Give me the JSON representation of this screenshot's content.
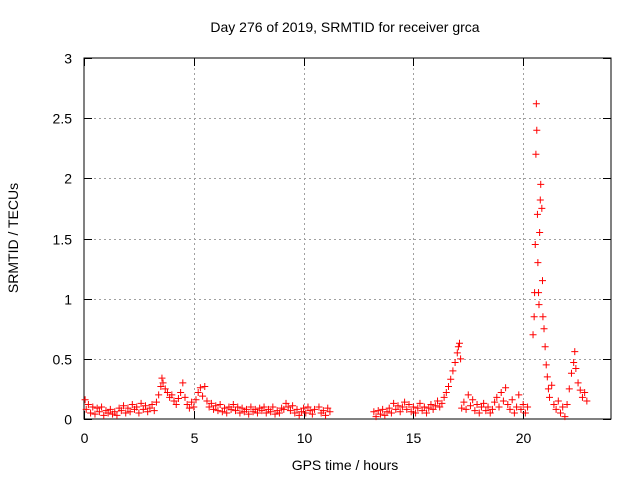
{
  "chart_data": {
    "type": "scatter",
    "title": "Day 276 of 2019, SRMTID for receiver grca",
    "xlabel": "GPS time / hours",
    "ylabel": "SRMTID / TECUs",
    "xlim": [
      0,
      24
    ],
    "ylim": [
      0,
      3
    ],
    "xticks": [
      0,
      5,
      10,
      15,
      20
    ],
    "xtick_labels": [
      "0",
      "5",
      "10",
      "15",
      "20"
    ],
    "yticks": [
      0,
      0.5,
      1,
      1.5,
      2,
      2.5,
      3
    ],
    "ytick_labels": [
      "0",
      "0.5",
      "1",
      "1.5",
      "2",
      "2.5",
      "3"
    ],
    "grid": true,
    "marker": "+",
    "series": [
      {
        "name": "SRMTID",
        "color": "#ff0000",
        "points": [
          [
            0.05,
            0.16
          ],
          [
            0.1,
            0.08
          ],
          [
            0.2,
            0.12
          ],
          [
            0.3,
            0.05
          ],
          [
            0.4,
            0.1
          ],
          [
            0.5,
            0.04
          ],
          [
            0.6,
            0.09
          ],
          [
            0.7,
            0.06
          ],
          [
            0.8,
            0.1
          ],
          [
            0.9,
            0.03
          ],
          [
            1.0,
            0.07
          ],
          [
            1.1,
            0.05
          ],
          [
            1.2,
            0.08
          ],
          [
            1.3,
            0.04
          ],
          [
            1.4,
            0.06
          ],
          [
            1.5,
            0.03
          ],
          [
            1.6,
            0.09
          ],
          [
            1.7,
            0.07
          ],
          [
            1.8,
            0.11
          ],
          [
            1.9,
            0.05
          ],
          [
            2.0,
            0.09
          ],
          [
            2.1,
            0.06
          ],
          [
            2.2,
            0.12
          ],
          [
            2.3,
            0.08
          ],
          [
            2.4,
            0.1
          ],
          [
            2.5,
            0.05
          ],
          [
            2.6,
            0.13
          ],
          [
            2.7,
            0.08
          ],
          [
            2.8,
            0.11
          ],
          [
            2.9,
            0.06
          ],
          [
            3.0,
            0.09
          ],
          [
            3.1,
            0.12
          ],
          [
            3.2,
            0.07
          ],
          [
            3.3,
            0.14
          ],
          [
            3.4,
            0.2
          ],
          [
            3.5,
            0.27
          ],
          [
            3.55,
            0.34
          ],
          [
            3.6,
            0.3
          ],
          [
            3.7,
            0.25
          ],
          [
            3.8,
            0.22
          ],
          [
            3.9,
            0.18
          ],
          [
            4.0,
            0.2
          ],
          [
            4.1,
            0.15
          ],
          [
            4.2,
            0.12
          ],
          [
            4.3,
            0.17
          ],
          [
            4.4,
            0.22
          ],
          [
            4.5,
            0.3
          ],
          [
            4.6,
            0.18
          ],
          [
            4.7,
            0.12
          ],
          [
            4.8,
            0.09
          ],
          [
            4.9,
            0.14
          ],
          [
            5.0,
            0.1
          ],
          [
            5.1,
            0.16
          ],
          [
            5.2,
            0.22
          ],
          [
            5.3,
            0.26
          ],
          [
            5.4,
            0.19
          ],
          [
            5.5,
            0.27
          ],
          [
            5.6,
            0.15
          ],
          [
            5.7,
            0.1
          ],
          [
            5.8,
            0.13
          ],
          [
            5.9,
            0.08
          ],
          [
            6.0,
            0.11
          ],
          [
            6.1,
            0.07
          ],
          [
            6.2,
            0.12
          ],
          [
            6.3,
            0.06
          ],
          [
            6.4,
            0.09
          ],
          [
            6.5,
            0.05
          ],
          [
            6.6,
            0.1
          ],
          [
            6.7,
            0.08
          ],
          [
            6.8,
            0.12
          ],
          [
            6.9,
            0.07
          ],
          [
            7.0,
            0.1
          ],
          [
            7.1,
            0.05
          ],
          [
            7.2,
            0.09
          ],
          [
            7.3,
            0.06
          ],
          [
            7.4,
            0.08
          ],
          [
            7.5,
            0.04
          ],
          [
            7.6,
            0.1
          ],
          [
            7.7,
            0.06
          ],
          [
            7.8,
            0.08
          ],
          [
            7.9,
            0.05
          ],
          [
            8.0,
            0.09
          ],
          [
            8.1,
            0.07
          ],
          [
            8.2,
            0.1
          ],
          [
            8.3,
            0.05
          ],
          [
            8.4,
            0.08
          ],
          [
            8.5,
            0.06
          ],
          [
            8.6,
            0.1
          ],
          [
            8.7,
            0.04
          ],
          [
            8.8,
            0.07
          ],
          [
            8.9,
            0.05
          ],
          [
            9.0,
            0.09
          ],
          [
            9.1,
            0.08
          ],
          [
            9.2,
            0.13
          ],
          [
            9.3,
            0.1
          ],
          [
            9.4,
            0.07
          ],
          [
            9.5,
            0.11
          ],
          [
            9.6,
            0.05
          ],
          [
            9.7,
            0.08
          ],
          [
            9.8,
            0.03
          ],
          [
            9.9,
            0.06
          ],
          [
            10.0,
            0.09
          ],
          [
            10.1,
            0.05
          ],
          [
            10.2,
            0.1
          ],
          [
            10.3,
            0.07
          ],
          [
            10.4,
            0.04
          ],
          [
            10.5,
            0.08
          ],
          [
            10.7,
            0.1
          ],
          [
            10.8,
            0.05
          ],
          [
            10.9,
            0.07
          ],
          [
            11.0,
            0.03
          ],
          [
            11.1,
            0.09
          ],
          [
            11.2,
            0.06
          ],
          [
            13.2,
            0.06
          ],
          [
            13.3,
            0.02
          ],
          [
            13.4,
            0.07
          ],
          [
            13.5,
            0.04
          ],
          [
            13.6,
            0.08
          ],
          [
            13.7,
            0.03
          ],
          [
            13.8,
            0.06
          ],
          [
            13.9,
            0.09
          ],
          [
            14.0,
            0.05
          ],
          [
            14.1,
            0.13
          ],
          [
            14.2,
            0.08
          ],
          [
            14.3,
            0.11
          ],
          [
            14.4,
            0.06
          ],
          [
            14.5,
            0.1
          ],
          [
            14.6,
            0.14
          ],
          [
            14.7,
            0.08
          ],
          [
            14.8,
            0.12
          ],
          [
            14.9,
            0.06
          ],
          [
            15.0,
            0.1
          ],
          [
            15.1,
            0.05
          ],
          [
            15.2,
            0.09
          ],
          [
            15.3,
            0.13
          ],
          [
            15.4,
            0.07
          ],
          [
            15.5,
            0.1
          ],
          [
            15.6,
            0.05
          ],
          [
            15.7,
            0.09
          ],
          [
            15.8,
            0.12
          ],
          [
            15.9,
            0.08
          ],
          [
            16.0,
            0.11
          ],
          [
            16.1,
            0.15
          ],
          [
            16.2,
            0.1
          ],
          [
            16.3,
            0.13
          ],
          [
            16.4,
            0.18
          ],
          [
            16.5,
            0.22
          ],
          [
            16.6,
            0.27
          ],
          [
            16.7,
            0.33
          ],
          [
            16.8,
            0.4
          ],
          [
            16.9,
            0.47
          ],
          [
            17.0,
            0.55
          ],
          [
            17.05,
            0.6
          ],
          [
            17.1,
            0.63
          ],
          [
            17.15,
            0.5
          ],
          [
            17.2,
            0.09
          ],
          [
            17.3,
            0.14
          ],
          [
            17.4,
            0.08
          ],
          [
            17.5,
            0.2
          ],
          [
            17.6,
            0.11
          ],
          [
            17.7,
            0.16
          ],
          [
            17.8,
            0.07
          ],
          [
            17.9,
            0.12
          ],
          [
            18.0,
            0.05
          ],
          [
            18.1,
            0.1
          ],
          [
            18.2,
            0.13
          ],
          [
            18.3,
            0.07
          ],
          [
            18.4,
            0.1
          ],
          [
            18.5,
            0.05
          ],
          [
            18.6,
            0.08
          ],
          [
            18.7,
            0.14
          ],
          [
            18.8,
            0.18
          ],
          [
            18.9,
            0.1
          ],
          [
            19.0,
            0.22
          ],
          [
            19.1,
            0.15
          ],
          [
            19.2,
            0.26
          ],
          [
            19.3,
            0.12
          ],
          [
            19.4,
            0.08
          ],
          [
            19.5,
            0.16
          ],
          [
            19.6,
            0.05
          ],
          [
            19.7,
            0.1
          ],
          [
            19.8,
            0.2
          ],
          [
            19.9,
            0.08
          ],
          [
            20.0,
            0.12
          ],
          [
            20.1,
            0.05
          ],
          [
            20.2,
            0.1
          ],
          [
            20.45,
            0.7
          ],
          [
            20.5,
            0.85
          ],
          [
            20.52,
            1.05
          ],
          [
            20.55,
            1.45
          ],
          [
            20.58,
            2.2
          ],
          [
            20.6,
            2.62
          ],
          [
            20.62,
            2.4
          ],
          [
            20.65,
            1.7
          ],
          [
            20.67,
            1.3
          ],
          [
            20.7,
            1.05
          ],
          [
            20.72,
            0.95
          ],
          [
            20.75,
            1.55
          ],
          [
            20.78,
            1.82
          ],
          [
            20.8,
            1.95
          ],
          [
            20.85,
            1.75
          ],
          [
            20.88,
            1.15
          ],
          [
            20.9,
            0.85
          ],
          [
            20.95,
            0.75
          ],
          [
            21.0,
            0.6
          ],
          [
            21.05,
            0.45
          ],
          [
            21.1,
            0.35
          ],
          [
            21.15,
            0.25
          ],
          [
            21.2,
            0.18
          ],
          [
            21.3,
            0.28
          ],
          [
            21.4,
            0.12
          ],
          [
            21.5,
            0.08
          ],
          [
            21.6,
            0.15
          ],
          [
            21.7,
            0.05
          ],
          [
            21.8,
            0.1
          ],
          [
            21.9,
            0.02
          ],
          [
            22.0,
            0.12
          ],
          [
            22.1,
            0.25
          ],
          [
            22.2,
            0.38
          ],
          [
            22.3,
            0.47
          ],
          [
            22.35,
            0.56
          ],
          [
            22.4,
            0.42
          ],
          [
            22.5,
            0.3
          ],
          [
            22.6,
            0.24
          ],
          [
            22.7,
            0.18
          ],
          [
            22.8,
            0.22
          ],
          [
            22.9,
            0.15
          ]
        ]
      }
    ]
  }
}
